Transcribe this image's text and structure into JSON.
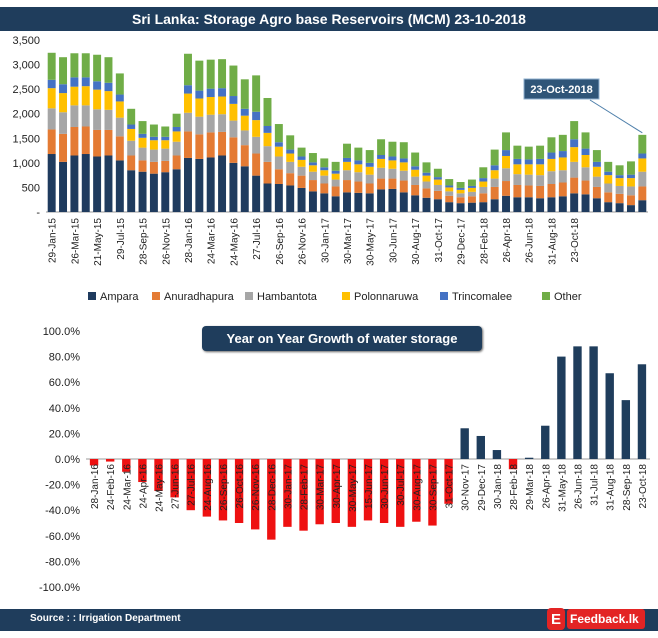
{
  "header": {
    "title": "Sri Lanka: Storage  Agro base Reservoirs (MCM) 23-10-2018"
  },
  "colors": {
    "Ampara": "#1f3b5e",
    "Anuradhapura": "#e47b34",
    "Hambantota": "#a6a6a6",
    "Polonnaruwa": "#ffc000",
    "Trincomalee": "#4472c4",
    "Other": "#70ad47",
    "yoy_positive": "#1f3d5c",
    "yoy_negative": "#ee1111",
    "banner": "#1f3d5c"
  },
  "chart_data": [
    {
      "type": "stacked-bar",
      "title": "Sri Lanka: Storage  Agro base Reservoirs (MCM) 23-10-2018",
      "ylim": [
        0,
        3500
      ],
      "yticks": [
        0,
        500,
        1000,
        1500,
        2000,
        2500,
        3000,
        3500
      ],
      "ytick_labels": [
        "-",
        "500",
        "1,000",
        "1,500",
        "2,000",
        "2,500",
        "3,000",
        "3,500"
      ],
      "xtick_labels": [
        "29-Jan-15",
        "26-Mar-15",
        "21-May-15",
        "29-Jul-15",
        "28-Sep-15",
        "26-Nov-15",
        "28-Jan-16",
        "24-Mar-16",
        "24-May-16",
        "27-Jul-16",
        "26-Sep-16",
        "26-Nov-16",
        "30-Jan-17",
        "30-Mar-17",
        "30-May-17",
        "30-Jun-17",
        "30-Aug-17",
        "31-Oct-17",
        "29-Dec-17",
        "28-Feb-18",
        "26-Apr-18",
        "26-Jun-18",
        "31-Aug-18",
        "23-Oct-18"
      ],
      "xtick_every": 2,
      "annotation": "23-Oct-2018",
      "legend_position": "bottom",
      "totals": [
        3240,
        3150,
        3230,
        3230,
        3200,
        3150,
        2820,
        2100,
        1850,
        1780,
        1740,
        2000,
        3220,
        3080,
        3100,
        3110,
        2980,
        2700,
        2780,
        2320,
        1790,
        1560,
        1310,
        1200,
        1090,
        1020,
        1390,
        1310,
        1260,
        1480,
        1430,
        1420,
        1210,
        1010,
        880,
        670,
        610,
        660,
        910,
        1270,
        1620,
        1350,
        1330,
        1350,
        1520,
        1570,
        1850,
        1620,
        1260,
        1020,
        950,
        1030,
        1570
      ],
      "series": [
        {
          "name": "Ampara",
          "values": [
            1180,
            1020,
            1150,
            1180,
            1130,
            1150,
            1050,
            850,
            820,
            780,
            810,
            870,
            1100,
            1080,
            1110,
            1150,
            1000,
            930,
            740,
            580,
            570,
            540,
            490,
            420,
            380,
            320,
            400,
            390,
            380,
            460,
            470,
            400,
            340,
            290,
            260,
            200,
            180,
            190,
            200,
            260,
            330,
            300,
            300,
            280,
            300,
            320,
            380,
            360,
            280,
            200,
            180,
            140,
            240
          ]
        },
        {
          "name": "Anuradhapura",
          "values": [
            500,
            570,
            580,
            560,
            540,
            520,
            490,
            300,
            230,
            240,
            230,
            280,
            540,
            500,
            510,
            480,
            520,
            430,
            450,
            440,
            300,
            250,
            250,
            230,
            200,
            200,
            250,
            230,
            200,
            220,
            210,
            240,
            210,
            190,
            170,
            130,
            120,
            130,
            180,
            250,
            300,
            250,
            240,
            250,
            270,
            280,
            320,
            280,
            230,
            200,
            190,
            200,
            280
          ]
        },
        {
          "name": "Hambantota",
          "values": [
            430,
            440,
            440,
            430,
            420,
            410,
            380,
            300,
            260,
            250,
            250,
            280,
            380,
            360,
            360,
            360,
            340,
            300,
            340,
            320,
            260,
            230,
            180,
            170,
            160,
            140,
            200,
            190,
            180,
            220,
            200,
            200,
            170,
            140,
            120,
            90,
            80,
            90,
            130,
            170,
            260,
            220,
            220,
            220,
            260,
            250,
            320,
            270,
            210,
            180,
            160,
            180,
            300
          ]
        },
        {
          "name": "Polonnaruwa",
          "values": [
            410,
            390,
            380,
            390,
            400,
            380,
            330,
            240,
            200,
            190,
            170,
            210,
            390,
            370,
            360,
            360,
            340,
            300,
            340,
            270,
            200,
            170,
            140,
            130,
            110,
            120,
            170,
            160,
            160,
            180,
            170,
            170,
            140,
            120,
            110,
            80,
            70,
            80,
            110,
            170,
            250,
            200,
            210,
            220,
            250,
            260,
            300,
            250,
            200,
            170,
            160,
            170,
            270
          ]
        },
        {
          "name": "Trincomalee",
          "values": [
            170,
            180,
            190,
            180,
            170,
            170,
            140,
            90,
            80,
            70,
            70,
            90,
            170,
            160,
            170,
            170,
            160,
            140,
            170,
            140,
            90,
            80,
            70,
            60,
            60,
            60,
            80,
            80,
            80,
            80,
            80,
            80,
            70,
            60,
            50,
            40,
            40,
            40,
            70,
            100,
            120,
            110,
            100,
            110,
            130,
            130,
            160,
            130,
            100,
            70,
            60,
            70,
            100
          ]
        },
        {
          "name": "Other",
          "values": [
            550,
            550,
            490,
            490,
            540,
            520,
            430,
            320,
            260,
            250,
            210,
            270,
            640,
            610,
            590,
            590,
            620,
            600,
            740,
            570,
            370,
            290,
            180,
            190,
            180,
            180,
            290,
            260,
            260,
            320,
            300,
            330,
            280,
            210,
            170,
            130,
            120,
            130,
            220,
            320,
            360,
            270,
            260,
            270,
            310,
            330,
            370,
            330,
            240,
            200,
            200,
            270,
            380
          ]
        }
      ]
    },
    {
      "type": "bar",
      "title": "Year on Year Growth of water storage",
      "ylim": [
        -100,
        100
      ],
      "yticks": [
        -100,
        -80,
        -60,
        -40,
        -20,
        0,
        20,
        40,
        60,
        80,
        100
      ],
      "ytick_labels": [
        "-100.0%",
        "-80.0%",
        "-60.0%",
        "-40.0%",
        "-20.0%",
        "0.0%",
        "20.0%",
        "40.0%",
        "60.0%",
        "80.0%",
        "100.0%"
      ],
      "categories": [
        "28-Jan-16",
        "24-Feb-16",
        "24-Mar-16",
        "24-Apr-16",
        "24-May-16",
        "27-Jun-16",
        "27-Jul-16",
        "24-Aug-16",
        "26-Sep-16",
        "26-Oct-16",
        "26-Nov-16",
        "28-Dec-16",
        "30-Jan-17",
        "28-Feb-17",
        "30-Mar-17",
        "30-Apr-17",
        "30-May-17",
        "15-Jun-17",
        "30-Jun-17",
        "30-Jul-17",
        "30-Aug-17",
        "30-Sep-17",
        "31-Oct-17",
        "30-Nov-17",
        "29-Dec-17",
        "30-Jan-18",
        "28-Feb-18",
        "29-Mar-18",
        "26-Apr-18",
        "31-May-18",
        "26-Jun-18",
        "31-Jul-18",
        "31-Aug-18",
        "28-Sep-18",
        "23-Oct-18"
      ],
      "values": [
        -5,
        -2,
        -10,
        -18,
        -25,
        -30,
        -40,
        -45,
        -48,
        -50,
        -55,
        -63,
        -53,
        -56,
        -51,
        -50,
        -53,
        -48,
        -50,
        -53,
        -49,
        -52,
        -35,
        24,
        18,
        7,
        -8,
        1,
        26,
        80,
        88,
        88,
        67,
        46,
        74
      ]
    }
  ],
  "footer": {
    "source": "Source : : Irrigation Department",
    "logo_text": "Feedback.lk",
    "logo_letter": "E"
  }
}
